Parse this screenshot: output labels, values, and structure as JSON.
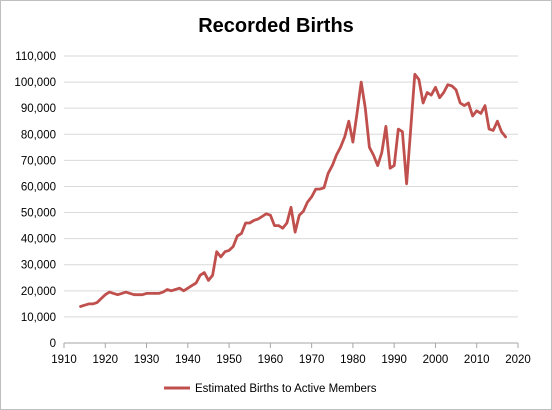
{
  "chart_data": {
    "type": "line",
    "title": "Recorded Births",
    "xlabel": "",
    "ylabel": "",
    "xlim": [
      1910,
      2020
    ],
    "ylim": [
      0,
      110000
    ],
    "x_ticks": [
      1910,
      1920,
      1930,
      1940,
      1950,
      1960,
      1970,
      1980,
      1990,
      2000,
      2010,
      2020
    ],
    "y_ticks": [
      0,
      10000,
      20000,
      30000,
      40000,
      50000,
      60000,
      70000,
      80000,
      90000,
      100000,
      110000
    ],
    "y_tick_labels": [
      "0",
      "10,000",
      "20,000",
      "30,000",
      "40,000",
      "50,000",
      "60,000",
      "70,000",
      "80,000",
      "90,000",
      "100,000",
      "110,000"
    ],
    "grid": "horizontal",
    "legend_position": "bottom",
    "series": [
      {
        "name": "Estimated Births to Active Members",
        "color": "#c0504d",
        "x": [
          1914,
          1915,
          1916,
          1917,
          1918,
          1919,
          1920,
          1921,
          1922,
          1923,
          1924,
          1925,
          1926,
          1927,
          1928,
          1929,
          1930,
          1931,
          1932,
          1933,
          1934,
          1935,
          1936,
          1937,
          1938,
          1939,
          1940,
          1941,
          1942,
          1943,
          1944,
          1945,
          1946,
          1947,
          1948,
          1949,
          1950,
          1951,
          1952,
          1953,
          1954,
          1955,
          1956,
          1957,
          1958,
          1959,
          1960,
          1961,
          1962,
          1963,
          1964,
          1965,
          1966,
          1967,
          1968,
          1969,
          1970,
          1971,
          1972,
          1973,
          1974,
          1975,
          1976,
          1977,
          1978,
          1979,
          1980,
          1981,
          1982,
          1983,
          1984,
          1985,
          1986,
          1987,
          1988,
          1989,
          1990,
          1991,
          1992,
          1993,
          1994,
          1995,
          1996,
          1997,
          1998,
          1999,
          2000,
          2001,
          2002,
          2003,
          2004,
          2005,
          2006,
          2007,
          2008,
          2009,
          2010,
          2011,
          2012,
          2013,
          2014,
          2015,
          2016,
          2017
        ],
        "y": [
          14000,
          14500,
          15000,
          15000,
          15500,
          17000,
          18500,
          19500,
          19000,
          18500,
          19000,
          19500,
          19000,
          18500,
          18500,
          18500,
          19000,
          19000,
          19000,
          19000,
          19500,
          20500,
          20000,
          20500,
          21000,
          20000,
          21000,
          22000,
          23000,
          26000,
          27000,
          24000,
          26000,
          35000,
          33000,
          35000,
          35500,
          37000,
          41000,
          42000,
          46000,
          46000,
          47000,
          47500,
          48500,
          49500,
          49000,
          45000,
          45000,
          44000,
          46000,
          52000,
          42500,
          49000,
          50500,
          54000,
          56000,
          59000,
          59000,
          59500,
          65000,
          68000,
          72000,
          75000,
          79000,
          85000,
          77000,
          88000,
          100000,
          90000,
          75000,
          72000,
          68000,
          73000,
          83000,
          67000,
          68000,
          82000,
          81000,
          61000,
          82000,
          103000,
          101000,
          92000,
          96000,
          95000,
          98000,
          94000,
          96000,
          99000,
          98500,
          97000,
          92000,
          91000,
          92000,
          87000,
          89000,
          88000,
          91000,
          82000,
          81500,
          85000,
          81000,
          79000
        ]
      }
    ]
  }
}
